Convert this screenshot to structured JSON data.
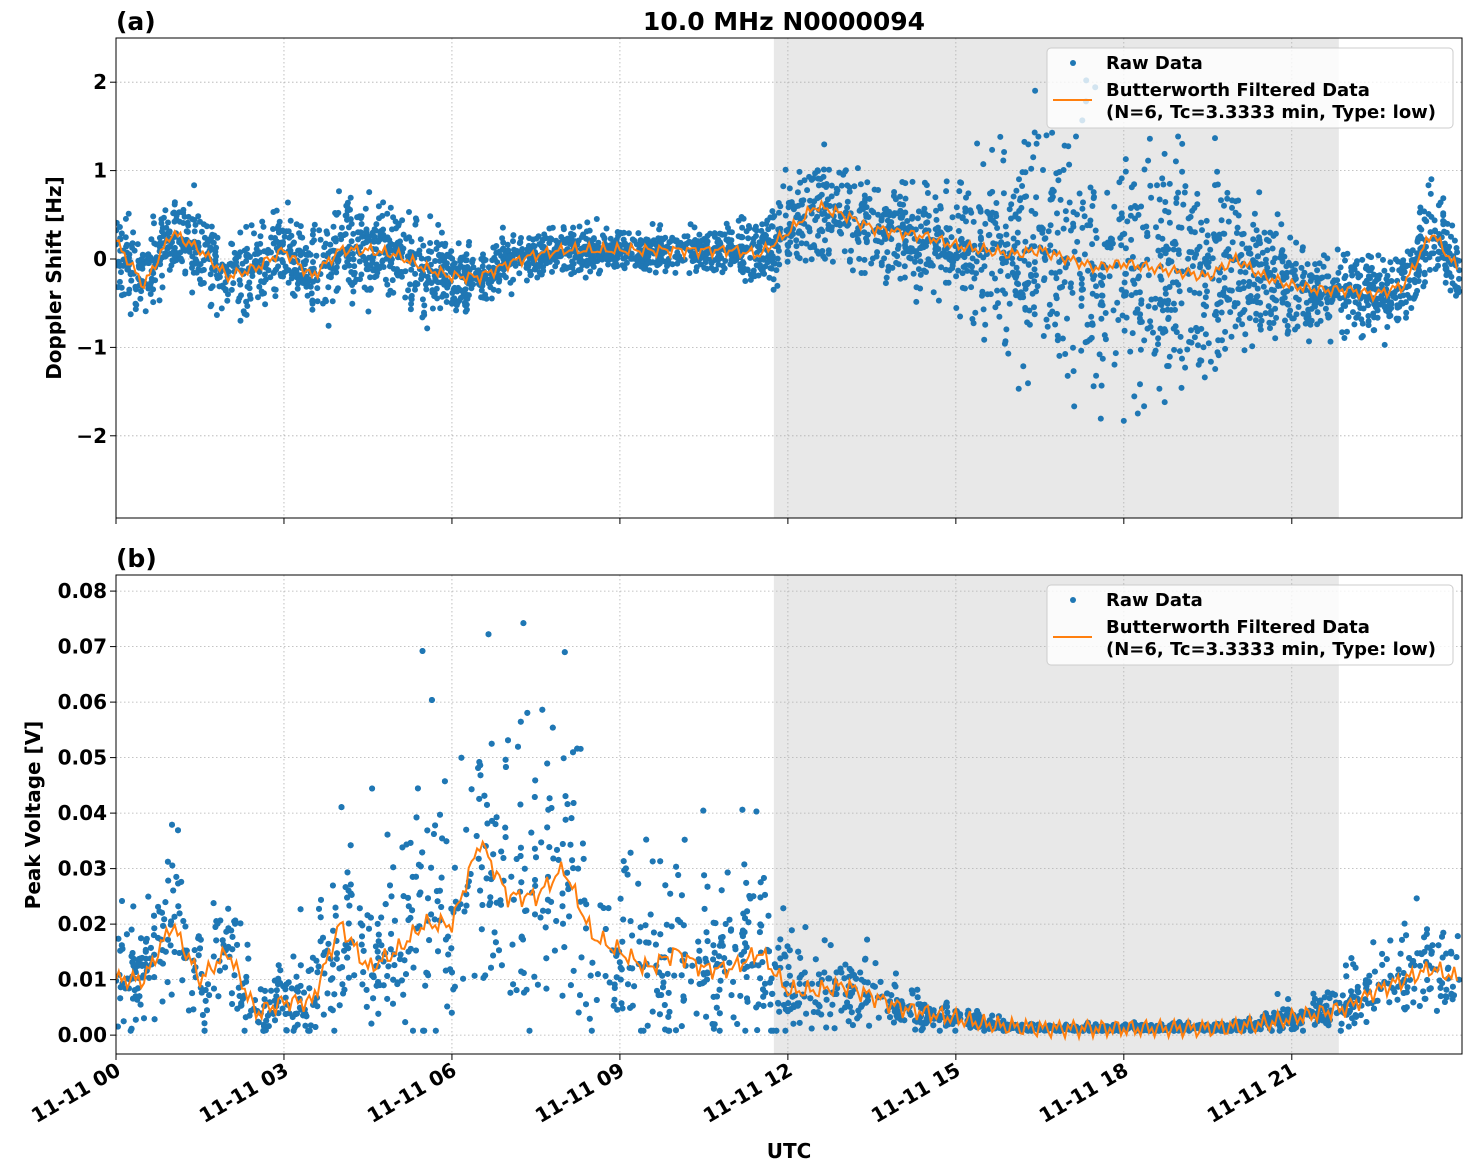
{
  "chart_data": [
    {
      "type": "scatter",
      "panel_label": "(a)",
      "title": "10.0 MHz N0000094",
      "xlabel": "",
      "ylabel": "Doppler Shift [Hz]",
      "xlim_hours": [
        0,
        24.04
      ],
      "ylim": [
        -2.93,
        2.5
      ],
      "yticks": [
        -2,
        -1,
        0,
        1,
        2
      ],
      "ytick_labels": [
        "−2",
        "−1",
        "0",
        "1",
        "2"
      ],
      "grid": true,
      "shaded_interval_hours": [
        11.75,
        21.84
      ],
      "legend_position": "top-right",
      "legend": [
        "Raw Data",
        "Butterworth Filtered Data",
        "(N=6, Tc=3.3333 min, Type: low)"
      ],
      "series": [
        {
          "name": "Butterworth Filtered Data",
          "color": "#ff7f0e",
          "x_hours": [
            0,
            0.5,
            1,
            1.5,
            2,
            2.5,
            3,
            3.5,
            4,
            4.5,
            5,
            5.5,
            6,
            6.5,
            7,
            7.5,
            8,
            8.5,
            9,
            9.5,
            10,
            10.5,
            11,
            11.5,
            12,
            12.5,
            13,
            13.5,
            14,
            14.5,
            15,
            15.5,
            16,
            16.5,
            17,
            17.5,
            18,
            18.5,
            19,
            19.5,
            20,
            20.5,
            21,
            21.5,
            22,
            22.5,
            23,
            23.5,
            24
          ],
          "values": [
            0.2,
            -0.3,
            0.3,
            0.1,
            -0.2,
            -0.1,
            0.1,
            -0.2,
            0.1,
            0.1,
            0.05,
            -0.1,
            -0.2,
            -0.2,
            -0.05,
            0.05,
            0.1,
            0.1,
            0.1,
            0.1,
            0.1,
            0.1,
            0.1,
            0.05,
            0.3,
            0.6,
            0.5,
            0.35,
            0.3,
            0.25,
            0.15,
            0.1,
            0.05,
            0.1,
            0.0,
            -0.1,
            -0.05,
            -0.1,
            -0.15,
            -0.2,
            0.0,
            -0.2,
            -0.3,
            -0.35,
            -0.35,
            -0.4,
            -0.3,
            0.3,
            -0.15
          ]
        },
        {
          "name": "Raw Data",
          "color": "#1f77b4",
          "spread_half_width": [
            0.4,
            0.4,
            0.4,
            0.4,
            0.4,
            0.4,
            0.45,
            0.45,
            0.45,
            0.45,
            0.45,
            0.45,
            0.3,
            0.25,
            0.25,
            0.2,
            0.2,
            0.2,
            0.2,
            0.2,
            0.2,
            0.2,
            0.25,
            0.3,
            0.45,
            0.5,
            0.5,
            0.45,
            0.45,
            0.5,
            0.55,
            0.8,
            1.0,
            1.1,
            1.2,
            1.25,
            1.2,
            1.2,
            1.1,
            1.0,
            0.8,
            0.6,
            0.5,
            0.4,
            0.4,
            0.4,
            0.4,
            0.45,
            0.4
          ]
        }
      ]
    },
    {
      "type": "scatter",
      "panel_label": "(b)",
      "xlabel": "UTC",
      "ylabel": "Peak Voltage [V]",
      "xlim_hours": [
        0,
        24.04
      ],
      "ylim": [
        -0.0034,
        0.0829
      ],
      "yticks": [
        0,
        0.01,
        0.02,
        0.03,
        0.04,
        0.05,
        0.06,
        0.07,
        0.08
      ],
      "ytick_labels": [
        "0.00",
        "0.01",
        "0.02",
        "0.03",
        "0.04",
        "0.05",
        "0.06",
        "0.07",
        "0.08"
      ],
      "xticks_hours": [
        0,
        3,
        6,
        9,
        12,
        15,
        18,
        21
      ],
      "xtick_labels": [
        "11-11 00",
        "11-11 03",
        "11-11 06",
        "11-11 09",
        "11-11 12",
        "11-11 15",
        "11-11 18",
        "11-11 21"
      ],
      "grid": true,
      "shaded_interval_hours": [
        11.75,
        21.84
      ],
      "legend_position": "top-right",
      "legend": [
        "Raw Data",
        "Butterworth Filtered Data",
        "(N=6, Tc=3.3333 min, Type: low)"
      ],
      "series": [
        {
          "name": "Butterworth Filtered Data",
          "color": "#ff7f0e",
          "x_hours": [
            0,
            0.5,
            1,
            1.5,
            2,
            2.5,
            3,
            3.5,
            4,
            4.5,
            5,
            5.5,
            6,
            6.5,
            7,
            7.5,
            8,
            8.5,
            9,
            9.5,
            10,
            10.5,
            11,
            11.5,
            12,
            12.5,
            13,
            13.5,
            14,
            14.5,
            15,
            15.5,
            16,
            16.5,
            17,
            17.5,
            18,
            18.5,
            19,
            19.5,
            20,
            20.5,
            21,
            21.5,
            22,
            22.5,
            23,
            23.5,
            24
          ],
          "values": [
            0.01,
            0.01,
            0.02,
            0.01,
            0.015,
            0.004,
            0.006,
            0.006,
            0.02,
            0.012,
            0.015,
            0.02,
            0.02,
            0.035,
            0.025,
            0.025,
            0.03,
            0.018,
            0.015,
            0.012,
            0.015,
            0.012,
            0.012,
            0.015,
            0.008,
            0.008,
            0.009,
            0.007,
            0.005,
            0.004,
            0.003,
            0.002,
            0.0015,
            0.0012,
            0.0012,
            0.0012,
            0.0012,
            0.0012,
            0.0012,
            0.0012,
            0.0015,
            0.002,
            0.003,
            0.004,
            0.005,
            0.008,
            0.01,
            0.012,
            0.01
          ]
        },
        {
          "name": "Raw Data",
          "color": "#1f77b4",
          "spread_half_width": [
            0.006,
            0.006,
            0.01,
            0.006,
            0.008,
            0.004,
            0.005,
            0.006,
            0.012,
            0.01,
            0.012,
            0.014,
            0.014,
            0.02,
            0.016,
            0.016,
            0.018,
            0.012,
            0.01,
            0.01,
            0.012,
            0.009,
            0.009,
            0.01,
            0.006,
            0.005,
            0.005,
            0.004,
            0.003,
            0.002,
            0.0015,
            0.001,
            0.0006,
            0.0005,
            0.0005,
            0.0005,
            0.0005,
            0.0005,
            0.0005,
            0.0005,
            0.0007,
            0.001,
            0.0015,
            0.002,
            0.003,
            0.004,
            0.005,
            0.006,
            0.006
          ]
        }
      ]
    }
  ]
}
